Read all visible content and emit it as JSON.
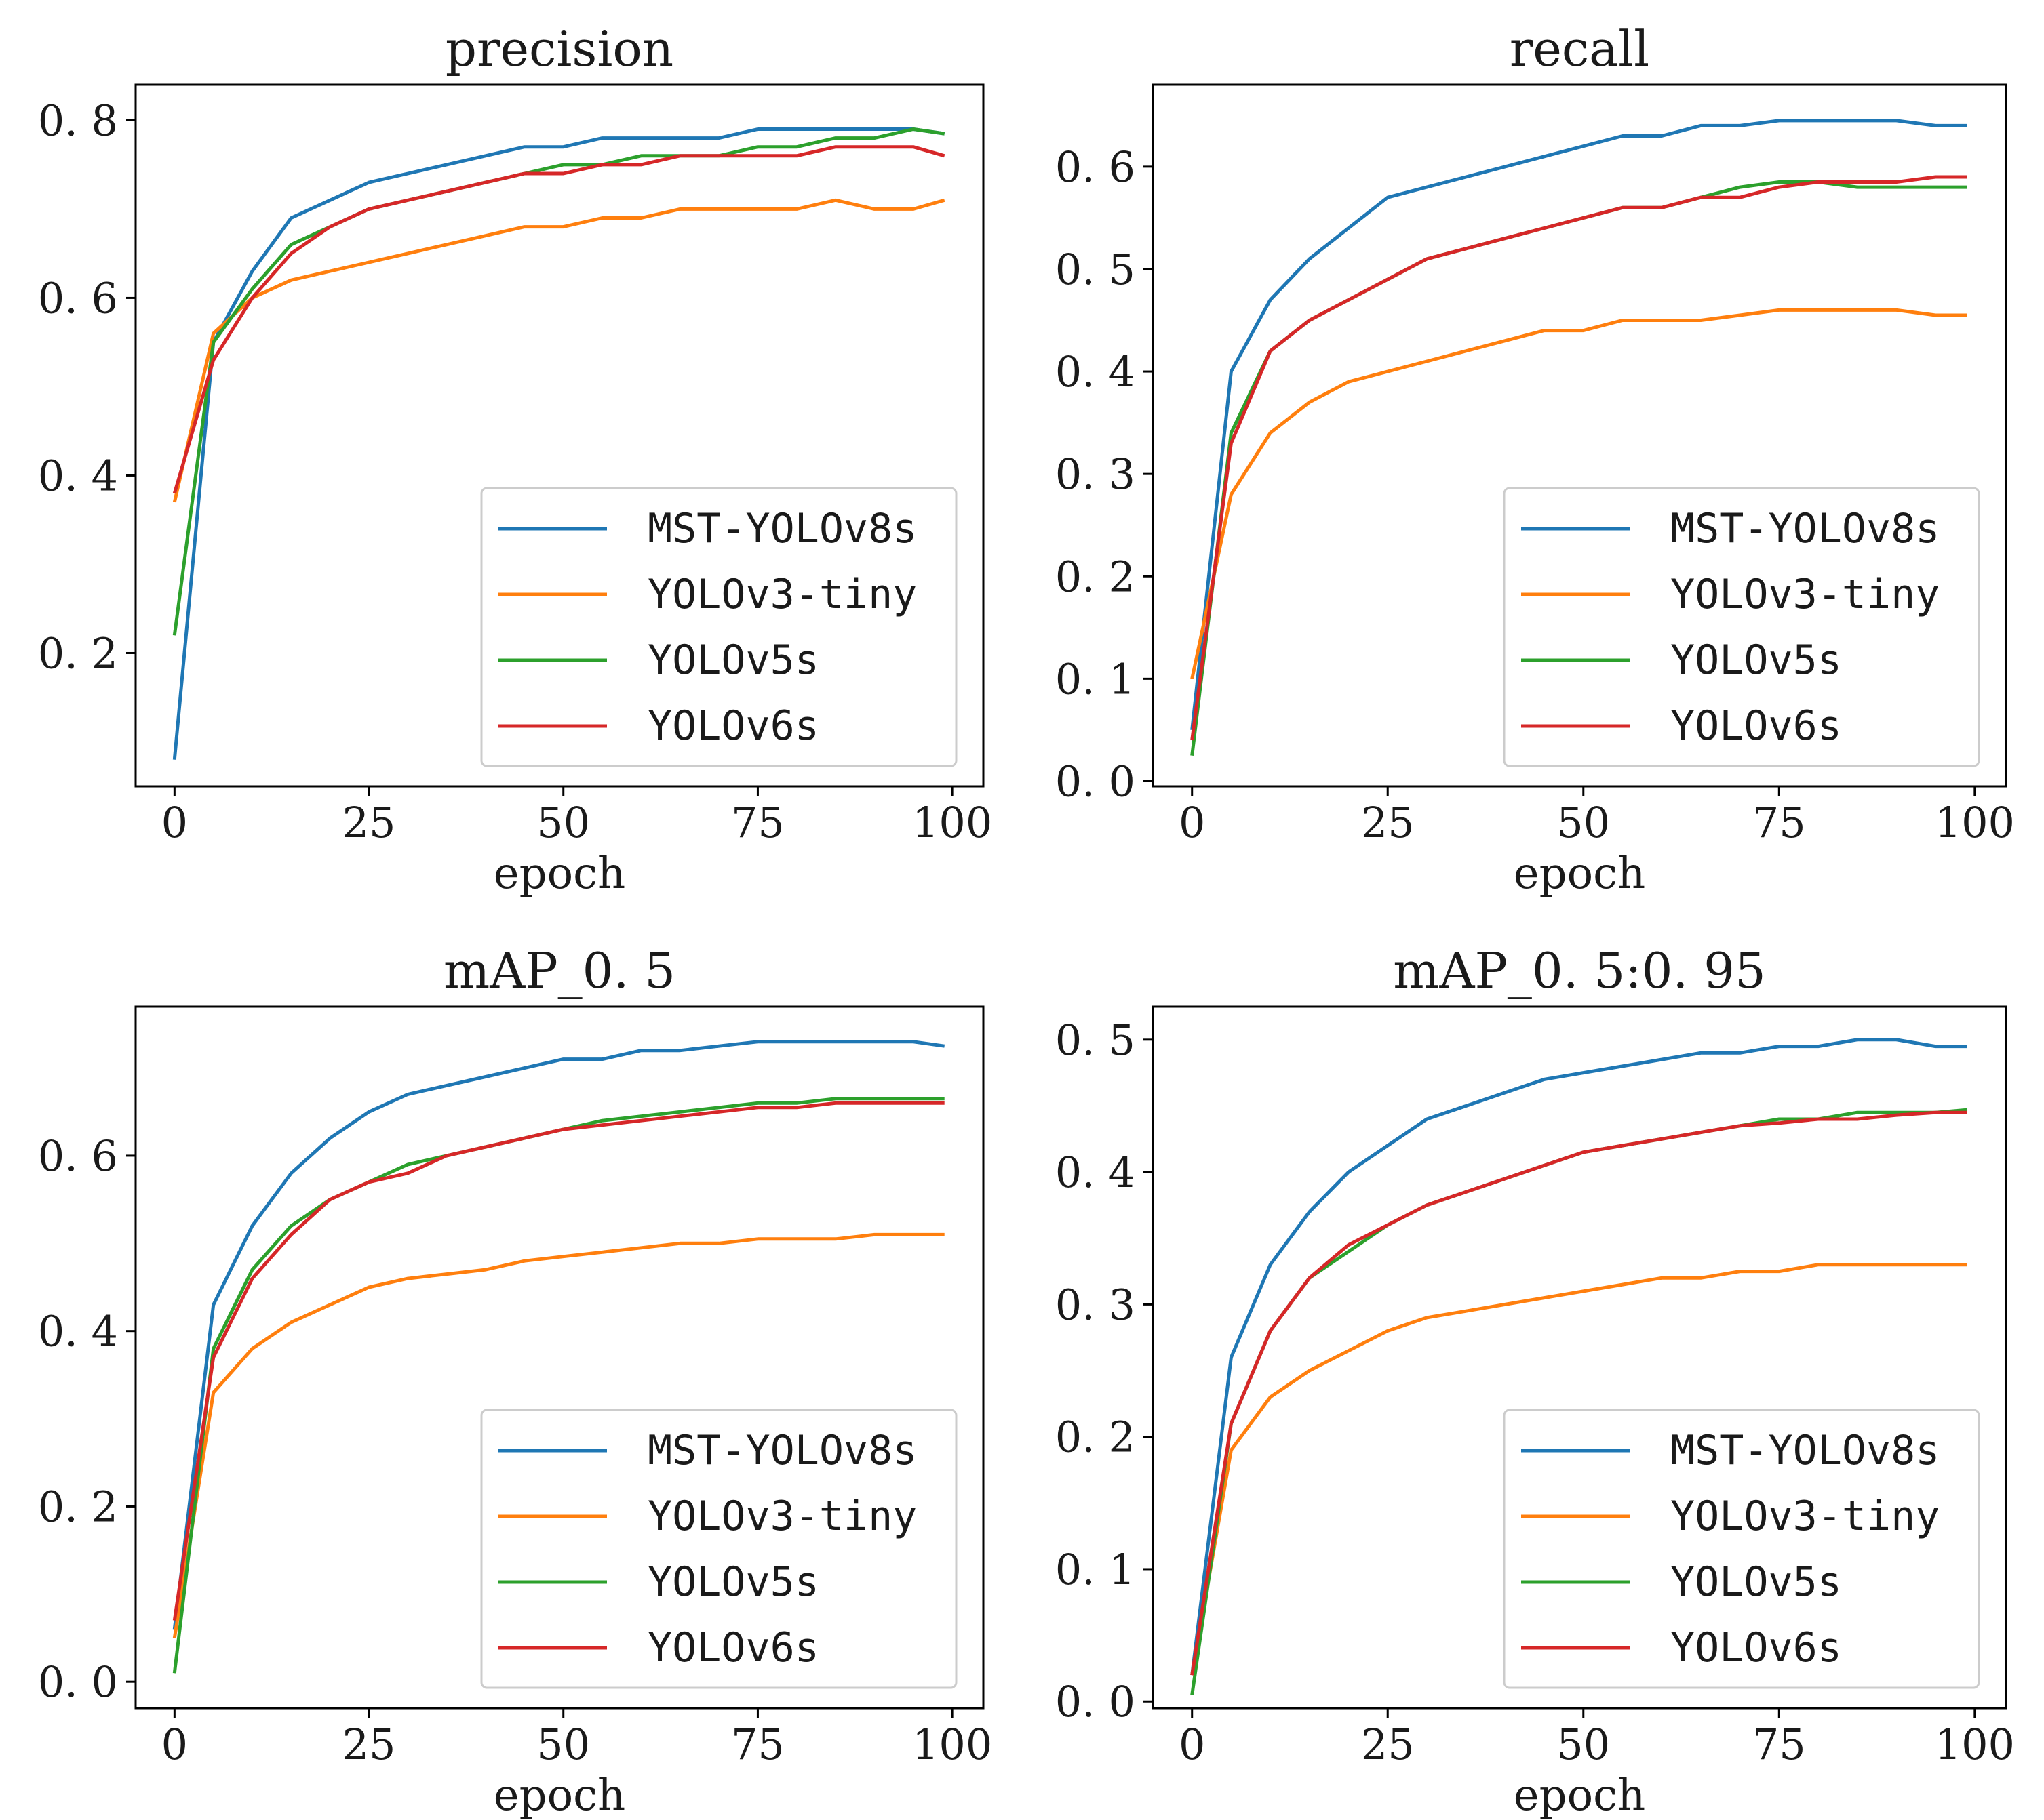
{
  "chart_data": [
    {
      "type": "line",
      "title": "precision",
      "xlabel": "epoch",
      "ylabel": "",
      "xlim": [
        -5,
        104
      ],
      "ylim": [
        0.05,
        0.84
      ],
      "xticks": [
        0,
        25,
        50,
        75,
        100
      ],
      "xtick_labels": [
        "0",
        "25",
        "50",
        "75",
        "100"
      ],
      "yticks": [
        0.2,
        0.4,
        0.6,
        0.8
      ],
      "ytick_labels": [
        "0. 2",
        "0. 4",
        "0. 6",
        "0. 8"
      ],
      "legend_position": "lower-right",
      "x_note": "epochs 0..99 at step 5",
      "x": [
        0,
        5,
        10,
        15,
        20,
        25,
        30,
        35,
        40,
        45,
        50,
        55,
        60,
        65,
        70,
        75,
        80,
        85,
        90,
        95,
        99
      ],
      "series": [
        {
          "name": "MST-YOLOv8s",
          "color": "#1f77b4",
          "values": [
            0.08,
            0.55,
            0.63,
            0.69,
            0.71,
            0.73,
            0.74,
            0.75,
            0.76,
            0.77,
            0.77,
            0.78,
            0.78,
            0.78,
            0.78,
            0.79,
            0.79,
            0.79,
            0.79,
            0.79,
            0.785
          ]
        },
        {
          "name": "YOLOv3-tiny",
          "color": "#ff7f0e",
          "values": [
            0.37,
            0.56,
            0.6,
            0.62,
            0.63,
            0.64,
            0.65,
            0.66,
            0.67,
            0.68,
            0.68,
            0.69,
            0.69,
            0.7,
            0.7,
            0.7,
            0.7,
            0.71,
            0.7,
            0.7,
            0.71
          ]
        },
        {
          "name": "YOLOv5s",
          "color": "#2ca02c",
          "values": [
            0.22,
            0.55,
            0.61,
            0.66,
            0.68,
            0.7,
            0.71,
            0.72,
            0.73,
            0.74,
            0.75,
            0.75,
            0.76,
            0.76,
            0.76,
            0.77,
            0.77,
            0.78,
            0.78,
            0.79,
            0.785
          ]
        },
        {
          "name": "YOLOv6s",
          "color": "#d62728",
          "values": [
            0.38,
            0.53,
            0.6,
            0.65,
            0.68,
            0.7,
            0.71,
            0.72,
            0.73,
            0.74,
            0.74,
            0.75,
            0.75,
            0.76,
            0.76,
            0.76,
            0.76,
            0.77,
            0.77,
            0.77,
            0.76
          ]
        }
      ]
    },
    {
      "type": "line",
      "title": "recall",
      "xlabel": "epoch",
      "ylabel": "",
      "xlim": [
        -5,
        104
      ],
      "ylim": [
        -0.005,
        0.68
      ],
      "xticks": [
        0,
        25,
        50,
        75,
        100
      ],
      "xtick_labels": [
        "0",
        "25",
        "50",
        "75",
        "100"
      ],
      "yticks": [
        0.0,
        0.1,
        0.2,
        0.3,
        0.4,
        0.5,
        0.6
      ],
      "ytick_labels": [
        "0. 0",
        "0. 1",
        "0. 2",
        "0. 3",
        "0. 4",
        "0. 5",
        "0. 6"
      ],
      "legend_position": "lower-right",
      "x_note": "epochs 0..99 at step 5",
      "x": [
        0,
        5,
        10,
        15,
        20,
        25,
        30,
        35,
        40,
        45,
        50,
        55,
        60,
        65,
        70,
        75,
        80,
        85,
        90,
        95,
        99
      ],
      "series": [
        {
          "name": "MST-YOLOv8s",
          "color": "#1f77b4",
          "values": [
            0.05,
            0.4,
            0.47,
            0.51,
            0.54,
            0.57,
            0.58,
            0.59,
            0.6,
            0.61,
            0.62,
            0.63,
            0.63,
            0.64,
            0.64,
            0.645,
            0.645,
            0.645,
            0.645,
            0.64,
            0.64
          ]
        },
        {
          "name": "YOLOv3-tiny",
          "color": "#ff7f0e",
          "values": [
            0.1,
            0.28,
            0.34,
            0.37,
            0.39,
            0.4,
            0.41,
            0.42,
            0.43,
            0.44,
            0.44,
            0.45,
            0.45,
            0.45,
            0.455,
            0.46,
            0.46,
            0.46,
            0.46,
            0.455,
            0.455
          ]
        },
        {
          "name": "YOLOv5s",
          "color": "#2ca02c",
          "values": [
            0.025,
            0.34,
            0.42,
            0.45,
            0.47,
            0.49,
            0.51,
            0.52,
            0.53,
            0.54,
            0.55,
            0.56,
            0.56,
            0.57,
            0.58,
            0.585,
            0.585,
            0.58,
            0.58,
            0.58,
            0.58
          ]
        },
        {
          "name": "YOLOv6s",
          "color": "#d62728",
          "values": [
            0.04,
            0.33,
            0.42,
            0.45,
            0.47,
            0.49,
            0.51,
            0.52,
            0.53,
            0.54,
            0.55,
            0.56,
            0.56,
            0.57,
            0.57,
            0.58,
            0.585,
            0.585,
            0.585,
            0.59,
            0.59
          ]
        }
      ]
    },
    {
      "type": "line",
      "title": "mAP_0. 5",
      "xlabel": "epoch",
      "ylabel": "",
      "xlim": [
        -5,
        104
      ],
      "ylim": [
        -0.03,
        0.77
      ],
      "xticks": [
        0,
        25,
        50,
        75,
        100
      ],
      "xtick_labels": [
        "0",
        "25",
        "50",
        "75",
        "100"
      ],
      "yticks": [
        0.0,
        0.2,
        0.4,
        0.6
      ],
      "ytick_labels": [
        "0. 0",
        "0. 2",
        "0. 4",
        "0. 6"
      ],
      "legend_position": "lower-right",
      "x_note": "epochs 0..99 at step 5",
      "x": [
        0,
        5,
        10,
        15,
        20,
        25,
        30,
        35,
        40,
        45,
        50,
        55,
        60,
        65,
        70,
        75,
        80,
        85,
        90,
        95,
        99
      ],
      "series": [
        {
          "name": "MST-YOLOv8s",
          "color": "#1f77b4",
          "values": [
            0.06,
            0.43,
            0.52,
            0.58,
            0.62,
            0.65,
            0.67,
            0.68,
            0.69,
            0.7,
            0.71,
            0.71,
            0.72,
            0.72,
            0.725,
            0.73,
            0.73,
            0.73,
            0.73,
            0.73,
            0.725
          ]
        },
        {
          "name": "YOLOv3-tiny",
          "color": "#ff7f0e",
          "values": [
            0.05,
            0.33,
            0.38,
            0.41,
            0.43,
            0.45,
            0.46,
            0.465,
            0.47,
            0.48,
            0.485,
            0.49,
            0.495,
            0.5,
            0.5,
            0.505,
            0.505,
            0.505,
            0.51,
            0.51,
            0.51
          ]
        },
        {
          "name": "YOLOv5s",
          "color": "#2ca02c",
          "values": [
            0.01,
            0.38,
            0.47,
            0.52,
            0.55,
            0.57,
            0.59,
            0.6,
            0.61,
            0.62,
            0.63,
            0.64,
            0.645,
            0.65,
            0.655,
            0.66,
            0.66,
            0.665,
            0.665,
            0.665,
            0.665
          ]
        },
        {
          "name": "YOLOv6s",
          "color": "#d62728",
          "values": [
            0.07,
            0.37,
            0.46,
            0.51,
            0.55,
            0.57,
            0.58,
            0.6,
            0.61,
            0.62,
            0.63,
            0.635,
            0.64,
            0.645,
            0.65,
            0.655,
            0.655,
            0.66,
            0.66,
            0.66,
            0.66
          ]
        }
      ]
    },
    {
      "type": "line",
      "title": "mAP_0. 5:0. 95",
      "xlabel": "epoch",
      "ylabel": "",
      "xlim": [
        -5,
        104
      ],
      "ylim": [
        -0.005,
        0.525
      ],
      "xticks": [
        0,
        25,
        50,
        75,
        100
      ],
      "xtick_labels": [
        "0",
        "25",
        "50",
        "75",
        "100"
      ],
      "yticks": [
        0.0,
        0.1,
        0.2,
        0.3,
        0.4,
        0.5
      ],
      "ytick_labels": [
        "0. 0",
        "0. 1",
        "0. 2",
        "0. 3",
        "0. 4",
        "0. 5"
      ],
      "legend_position": "lower-right",
      "x_note": "epochs 0..99 at step 5",
      "x": [
        0,
        5,
        10,
        15,
        20,
        25,
        30,
        35,
        40,
        45,
        50,
        55,
        60,
        65,
        70,
        75,
        80,
        85,
        90,
        95,
        99
      ],
      "series": [
        {
          "name": "MST-YOLOv8s",
          "color": "#1f77b4",
          "values": [
            0.02,
            0.26,
            0.33,
            0.37,
            0.4,
            0.42,
            0.44,
            0.45,
            0.46,
            0.47,
            0.475,
            0.48,
            0.485,
            0.49,
            0.49,
            0.495,
            0.495,
            0.5,
            0.5,
            0.495,
            0.495
          ]
        },
        {
          "name": "YOLOv3-tiny",
          "color": "#ff7f0e",
          "values": [
            0.02,
            0.19,
            0.23,
            0.25,
            0.265,
            0.28,
            0.29,
            0.295,
            0.3,
            0.305,
            0.31,
            0.315,
            0.32,
            0.32,
            0.325,
            0.325,
            0.33,
            0.33,
            0.33,
            0.33,
            0.33
          ]
        },
        {
          "name": "YOLOv5s",
          "color": "#2ca02c",
          "values": [
            0.005,
            0.21,
            0.28,
            0.32,
            0.34,
            0.36,
            0.375,
            0.385,
            0.395,
            0.405,
            0.415,
            0.42,
            0.425,
            0.43,
            0.435,
            0.44,
            0.44,
            0.445,
            0.445,
            0.445,
            0.447
          ]
        },
        {
          "name": "YOLOv6s",
          "color": "#d62728",
          "values": [
            0.02,
            0.21,
            0.28,
            0.32,
            0.345,
            0.36,
            0.375,
            0.385,
            0.395,
            0.405,
            0.415,
            0.42,
            0.425,
            0.43,
            0.435,
            0.437,
            0.44,
            0.44,
            0.443,
            0.445,
            0.445
          ]
        }
      ]
    }
  ]
}
